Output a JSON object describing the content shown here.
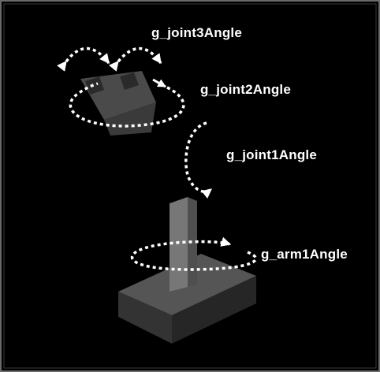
{
  "labels": {
    "joint3": "g_joint3Angle",
    "joint2": "g_joint2Angle",
    "joint1": "g_joint1Angle",
    "arm1": "g_arm1Angle"
  },
  "colors": {
    "outer_background": "#ffffff",
    "scene_background": "#000000",
    "border": "#6a6a6a",
    "annotation": "#ffffff",
    "base_top": "#555555",
    "base_front": "#333333",
    "base_side": "#262626",
    "arm_front": "#777777",
    "arm_side": "#4f4f4f",
    "hand": "#4a4a4a",
    "fingers": "#2a2a2a"
  },
  "icons": {
    "rotation_arrows": "dotted-rotation-arrow-icon",
    "robot": "robot-arm-model"
  }
}
